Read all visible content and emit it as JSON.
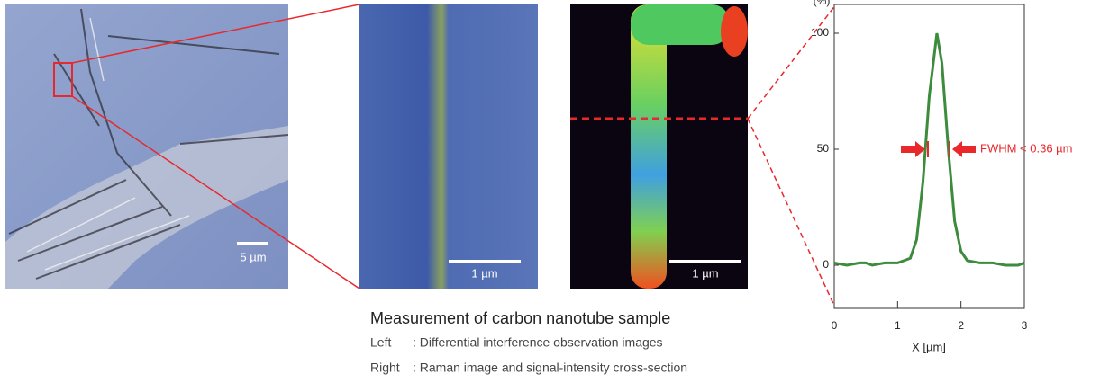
{
  "chart_data": {
    "type": "line",
    "ylabel": "(%)",
    "xlabel": "X [µm]",
    "x": [
      0,
      0.2,
      0.4,
      0.5,
      0.6,
      0.8,
      1.0,
      1.1,
      1.2,
      1.3,
      1.4,
      1.5,
      1.62,
      1.7,
      1.8,
      1.9,
      2.0,
      2.1,
      2.3,
      2.5,
      2.7,
      2.9,
      3.0
    ],
    "series": [
      {
        "color": "#3d8b3d",
        "values": [
          1,
          0,
          1,
          1,
          0,
          1,
          1,
          2,
          3,
          11,
          36,
          73,
          100,
          87,
          50,
          19,
          6,
          2,
          1,
          1,
          0,
          0,
          1
        ]
      }
    ],
    "xlim": [
      0,
      3
    ],
    "ylim": [
      -18.6,
      112.4
    ],
    "xticks": [
      0,
      1,
      2,
      3
    ],
    "yticks": [
      0,
      50,
      100
    ],
    "annotation": "FWHM < 0.36 µm",
    "annotation_color": "#e8282b"
  },
  "images": {
    "scale_bars": [
      "5 µm",
      "1 µm",
      "1 µm"
    ]
  },
  "caption": {
    "title": "Measurement of carbon nanotube sample",
    "lines": [
      {
        "label": "Left",
        "text": ": Differential interference observation images"
      },
      {
        "label": "Right",
        "text": ": Raman image and signal-intensity cross-section"
      }
    ]
  }
}
